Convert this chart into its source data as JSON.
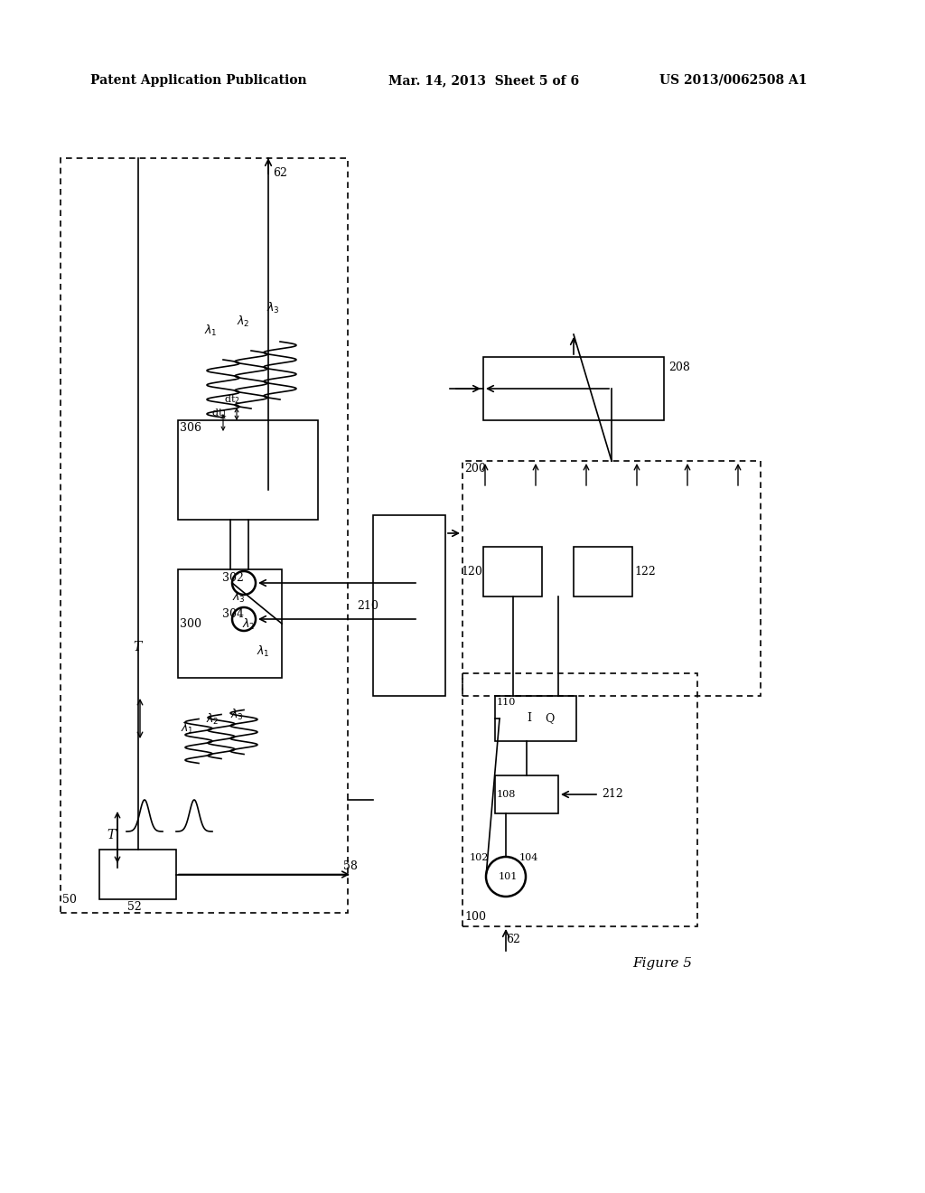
{
  "background_color": "#ffffff",
  "header_left": "Patent Application Publication",
  "header_center": "Mar. 14, 2013  Sheet 5 of 6",
  "header_right": "US 2013/0062508 A1",
  "figure_label": "Figure 5",
  "title_fontsize": 10,
  "label_fontsize": 9
}
